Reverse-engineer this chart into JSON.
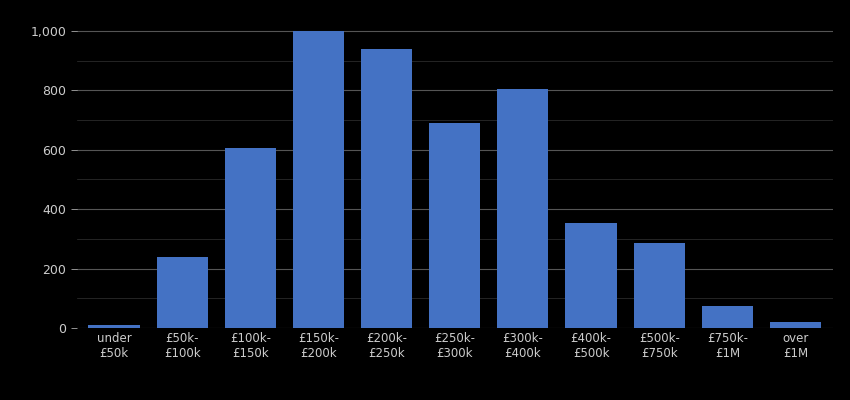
{
  "categories": [
    "under\n£50k",
    "£50k-\n£100k",
    "£100k-\n£150k",
    "£150k-\n£200k",
    "£200k-\n£250k",
    "£250k-\n£300k",
    "£300k-\n£400k",
    "£400k-\n£500k",
    "£500k-\n£750k",
    "£750k-\n£1M",
    "over\n£1M"
  ],
  "values": [
    10,
    240,
    605,
    1000,
    940,
    690,
    805,
    355,
    285,
    75,
    20
  ],
  "bar_color": "#4472c4",
  "background_color": "#000000",
  "text_color": "#cccccc",
  "major_grid_color": "#555555",
  "minor_grid_color": "#333333",
  "ylim": [
    0,
    1050
  ],
  "yticks_major": [
    0,
    200,
    400,
    600,
    800,
    1000
  ],
  "bar_width": 0.75
}
